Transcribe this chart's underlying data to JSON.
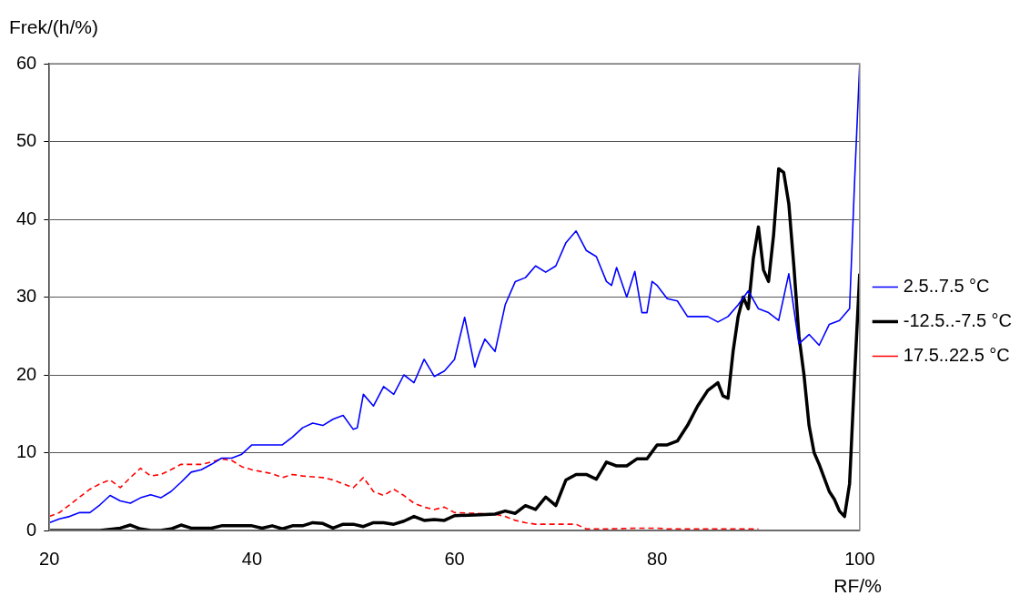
{
  "chart_data": {
    "type": "line",
    "xlabel": "RF/%",
    "ylabel": "Frek/(h/%)",
    "xlim": [
      20,
      100
    ],
    "xticks": [
      20,
      40,
      60,
      80,
      100
    ],
    "ylim": [
      0,
      60
    ],
    "yticks": [
      0,
      10,
      20,
      30,
      40,
      50,
      60
    ],
    "grid": "y",
    "legend": "right",
    "marker": "none",
    "series": [
      {
        "name": "2.5..7.5 °C",
        "color": "#0000ff",
        "line_style": "solid",
        "x": [
          20,
          21,
          22,
          23,
          24,
          25,
          26,
          27,
          28,
          29,
          30,
          31,
          32,
          33,
          34,
          35,
          36,
          37,
          38,
          39,
          40,
          41,
          43,
          44,
          45,
          46,
          47,
          48,
          49,
          50,
          50.4,
          51,
          52,
          53,
          54,
          55,
          56,
          57,
          58,
          59,
          60,
          61,
          62,
          62.5,
          63,
          64,
          65,
          66,
          67,
          68,
          69,
          70,
          71,
          72,
          73,
          74,
          75,
          75.5,
          76,
          77,
          77.8,
          78.5,
          79,
          79.5,
          80,
          81,
          82,
          83,
          85,
          86,
          87,
          88,
          89,
          90,
          91,
          92,
          93,
          94,
          95,
          96,
          97,
          98,
          99,
          99.5,
          100
        ],
        "values": [
          1.0,
          1.5,
          1.8,
          2.3,
          2.3,
          3.3,
          4.5,
          3.8,
          3.5,
          4.2,
          4.6,
          4.2,
          5.0,
          6.2,
          7.5,
          7.8,
          8.5,
          9.3,
          9.3,
          9.8,
          11,
          11,
          11,
          12,
          13.2,
          13.8,
          13.5,
          14.3,
          14.8,
          13,
          13.2,
          17.5,
          16,
          18.5,
          17.5,
          20,
          19,
          22,
          19.8,
          20.5,
          22,
          27.4,
          21,
          23,
          24.6,
          23,
          29,
          32,
          32.5,
          34,
          33.2,
          34,
          37,
          38.5,
          36,
          35.2,
          32,
          31.5,
          33.8,
          30,
          33.3,
          28,
          28,
          32,
          31.5,
          29.8,
          29.5,
          27.5,
          27.5,
          26.8,
          27.5,
          29,
          30.8,
          28.5,
          28,
          27,
          33,
          24,
          25.2,
          23.8,
          26.5,
          27,
          28.5,
          45,
          60
        ]
      },
      {
        "name": "-12.5..-7.5 °C",
        "color": "#000000",
        "line_style": "solid",
        "x": [
          20,
          25,
          27,
          28,
          29,
          30,
          31,
          32,
          33,
          34,
          36,
          37,
          40,
          41,
          42,
          43,
          44,
          45,
          46,
          47,
          48,
          49,
          50,
          51,
          52,
          53,
          54,
          55,
          56,
          57,
          58,
          59,
          60,
          62,
          64,
          65,
          66,
          67,
          68,
          69,
          70,
          71,
          72,
          73,
          74,
          75,
          76,
          77,
          78,
          79,
          80,
          81,
          82,
          83,
          84,
          85,
          86,
          86.5,
          87,
          87.5,
          88,
          88.5,
          89,
          89.5,
          90,
          90.5,
          91,
          91.5,
          92,
          92.5,
          93,
          93.5,
          94,
          94.5,
          95,
          95.5,
          96,
          97,
          97.5,
          98,
          98.5,
          99,
          99.5,
          100
        ],
        "values": [
          0,
          0,
          0.3,
          0.7,
          0.2,
          0,
          0,
          0.2,
          0.7,
          0.3,
          0.3,
          0.6,
          0.6,
          0.3,
          0.6,
          0.2,
          0.6,
          0.6,
          1.0,
          0.9,
          0.3,
          0.8,
          0.8,
          0.5,
          1.0,
          1.0,
          0.8,
          1.2,
          1.8,
          1.3,
          1.4,
          1.3,
          1.9,
          2.0,
          2.1,
          2.5,
          2.2,
          3.2,
          2.7,
          4.3,
          3.2,
          6.5,
          7.2,
          7.2,
          6.6,
          8.8,
          8.3,
          8.3,
          9.2,
          9.2,
          11,
          11,
          11.5,
          13.5,
          16,
          18,
          19,
          17.3,
          17,
          23,
          27.5,
          30,
          28.5,
          35,
          39,
          33.5,
          32,
          38,
          46.5,
          46,
          42,
          34,
          25,
          20,
          13.5,
          10,
          8.5,
          5,
          4,
          2.5,
          1.8,
          6,
          20,
          33
        ]
      },
      {
        "name": "17.5..22.5 °C",
        "color": "#ff0000",
        "line_style": "dashed",
        "x": [
          20,
          21,
          22,
          23,
          24,
          25,
          26,
          27,
          28,
          29,
          30,
          31,
          32,
          33,
          35,
          36,
          37,
          38,
          39,
          40,
          42,
          43,
          44,
          45,
          47,
          48,
          49,
          50,
          51,
          52,
          53,
          54,
          55,
          56,
          57,
          58,
          59,
          60,
          62,
          64,
          65,
          66,
          67,
          68,
          70,
          72,
          73,
          75,
          78,
          80,
          81,
          85,
          90
        ],
        "values": [
          1.8,
          2.3,
          3.3,
          4.3,
          5.3,
          6,
          6.5,
          5.5,
          6.8,
          8,
          7,
          7.2,
          7.8,
          8.5,
          8.5,
          8.8,
          9.2,
          9,
          8.2,
          7.8,
          7.3,
          6.8,
          7.2,
          7,
          6.8,
          6.5,
          6.0,
          5.5,
          6.8,
          5.0,
          4.5,
          5.3,
          4.5,
          3.5,
          3,
          2.7,
          3,
          2.3,
          2.2,
          2.1,
          1.8,
          1.3,
          1.0,
          0.8,
          0.8,
          0.8,
          0.2,
          0.2,
          0.3,
          0.3,
          0.2,
          0.2,
          0.2
        ]
      }
    ]
  }
}
